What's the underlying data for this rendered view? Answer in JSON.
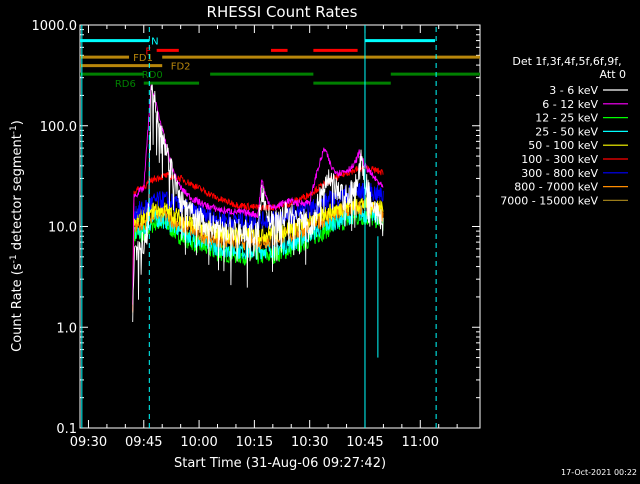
{
  "chart_data": {
    "type": "line",
    "title": "RHESSI Count Rates",
    "xlabel": "Start Time (31-Aug-06 09:27:42)",
    "ylabel_main": "Count Rate (s",
    "ylabel_sup1": "-1",
    "ylabel_mid": " detector segment",
    "ylabel_sup2": "-1",
    "ylabel_end": ")",
    "y_scale": "log",
    "ylim": [
      0.1,
      1000
    ],
    "x_ticks": [
      "09:30",
      "09:45",
      "10:00",
      "10:15",
      "10:30",
      "10:45",
      "11:00"
    ],
    "x_tick_minutes": [
      30,
      45,
      60,
      75,
      90,
      105,
      120
    ],
    "xlim_minutes": [
      27.7,
      136.2
    ],
    "y_ticks": [
      "0.1",
      "1.0",
      "10.0",
      "100.0",
      "1000.0"
    ],
    "y_tick_values": [
      0.1,
      1,
      10,
      100,
      1000
    ],
    "grid": false,
    "legend_position": "right",
    "legend_header_line1": "Det 1f,3f,4f,5f,6f,9f,",
    "legend_header_line2": "Att 0",
    "timestamp": "17-Oct-2021 00:22",
    "series": [
      {
        "name": "3 - 6 keV",
        "color": "#ffffff",
        "mode": "spiky",
        "pts": [
          [
            42,
            0.9
          ],
          [
            42.3,
            4.5
          ],
          [
            44,
            6.5
          ],
          [
            46,
            8
          ],
          [
            47,
            240
          ],
          [
            49,
            120
          ],
          [
            51,
            60
          ],
          [
            53,
            30
          ],
          [
            55,
            18
          ],
          [
            58,
            13
          ],
          [
            62,
            10.5
          ],
          [
            66,
            9.5
          ],
          [
            70,
            9
          ],
          [
            74,
            8.5
          ],
          [
            76,
            8.3
          ],
          [
            77,
            25
          ],
          [
            78,
            15
          ],
          [
            80,
            10
          ],
          [
            84,
            14
          ],
          [
            86,
            12
          ],
          [
            89,
            11.5
          ],
          [
            91,
            10
          ],
          [
            93,
            22
          ],
          [
            95,
            28
          ],
          [
            97,
            24
          ],
          [
            99,
            20
          ],
          [
            101,
            22
          ],
          [
            103,
            28
          ],
          [
            104,
            45
          ],
          [
            105,
            28
          ],
          [
            106,
            22
          ],
          [
            108,
            14
          ],
          [
            110,
            10
          ]
        ]
      },
      {
        "name": "6 - 12 keV",
        "color": "#ff00ff",
        "mode": "normal",
        "pts": [
          [
            42,
            1.8
          ],
          [
            42.3,
            20
          ],
          [
            45,
            24
          ],
          [
            47,
            250
          ],
          [
            49,
            130
          ],
          [
            51,
            65
          ],
          [
            53,
            35
          ],
          [
            55,
            24
          ],
          [
            58,
            19
          ],
          [
            62,
            16
          ],
          [
            66,
            14.5
          ],
          [
            70,
            14
          ],
          [
            74,
            13.5
          ],
          [
            76,
            13
          ],
          [
            77,
            30
          ],
          [
            78,
            20
          ],
          [
            80,
            15
          ],
          [
            84,
            18
          ],
          [
            87,
            17
          ],
          [
            90,
            17.5
          ],
          [
            92,
            35
          ],
          [
            94,
            60
          ],
          [
            96,
            38
          ],
          [
            98,
            34
          ],
          [
            100,
            36
          ],
          [
            102,
            40
          ],
          [
            103.5,
            55
          ],
          [
            105,
            40
          ],
          [
            107,
            32
          ],
          [
            110,
            24
          ]
        ]
      },
      {
        "name": "12 - 25 keV",
        "color": "#00ff00",
        "mode": "noisy",
        "pts": [
          [
            42.3,
            8
          ],
          [
            45,
            8.5
          ],
          [
            48,
            11
          ],
          [
            51,
            10.5
          ],
          [
            55,
            8
          ],
          [
            60,
            6.5
          ],
          [
            65,
            5.5
          ],
          [
            70,
            5.2
          ],
          [
            75,
            5
          ],
          [
            80,
            5.2
          ],
          [
            85,
            6
          ],
          [
            90,
            7.5
          ],
          [
            95,
            9.5
          ],
          [
            100,
            11.5
          ],
          [
            104,
            12.5
          ],
          [
            107,
            12
          ],
          [
            110,
            11
          ]
        ]
      },
      {
        "name": "25 - 50 keV",
        "color": "#00ffff",
        "mode": "noisy",
        "pts": [
          [
            42.3,
            9
          ],
          [
            45,
            9.5
          ],
          [
            48,
            12
          ],
          [
            51,
            11.5
          ],
          [
            55,
            9
          ],
          [
            60,
            7.2
          ],
          [
            65,
            6.2
          ],
          [
            70,
            5.8
          ],
          [
            75,
            5.7
          ],
          [
            80,
            6
          ],
          [
            85,
            6.8
          ],
          [
            90,
            8.5
          ],
          [
            95,
            10.5
          ],
          [
            100,
            12.5
          ],
          [
            104,
            13.5
          ],
          [
            107,
            13
          ],
          [
            110,
            12
          ]
        ]
      },
      {
        "name": "50 - 100 keV",
        "color": "#ffff00",
        "mode": "noisy",
        "pts": [
          [
            42.3,
            12
          ],
          [
            45,
            12.5
          ],
          [
            48,
            15
          ],
          [
            51,
            14.5
          ],
          [
            55,
            12
          ],
          [
            60,
            10
          ],
          [
            65,
            8.8
          ],
          [
            70,
            8.3
          ],
          [
            75,
            8.2
          ],
          [
            80,
            8.6
          ],
          [
            85,
            9.6
          ],
          [
            90,
            11.5
          ],
          [
            95,
            14
          ],
          [
            100,
            16
          ],
          [
            104,
            17
          ],
          [
            107,
            16.5
          ],
          [
            110,
            15
          ]
        ]
      },
      {
        "name": "100 - 300 keV",
        "color": "#ff0000",
        "mode": "normal",
        "pts": [
          [
            42,
            1.5
          ],
          [
            42.3,
            22
          ],
          [
            45,
            25
          ],
          [
            48,
            30
          ],
          [
            51,
            32
          ],
          [
            55,
            30
          ],
          [
            60,
            24
          ],
          [
            65,
            19
          ],
          [
            70,
            16.5
          ],
          [
            75,
            15.5
          ],
          [
            80,
            15.5
          ],
          [
            85,
            17
          ],
          [
            90,
            21
          ],
          [
            95,
            28
          ],
          [
            100,
            34
          ],
          [
            104,
            38
          ],
          [
            107,
            37
          ],
          [
            110,
            34
          ]
        ]
      },
      {
        "name": "300 - 800 keV",
        "color": "#0000ff",
        "mode": "noisy",
        "pts": [
          [
            42.3,
            14
          ],
          [
            45,
            15
          ],
          [
            48,
            18
          ],
          [
            51,
            18.5
          ],
          [
            55,
            16
          ],
          [
            60,
            13.5
          ],
          [
            65,
            12
          ],
          [
            70,
            11.5
          ],
          [
            75,
            11.3
          ],
          [
            80,
            11.8
          ],
          [
            85,
            13
          ],
          [
            90,
            15
          ],
          [
            95,
            18
          ],
          [
            100,
            21
          ],
          [
            104,
            22.5
          ],
          [
            107,
            22
          ],
          [
            110,
            20
          ]
        ]
      },
      {
        "name": "800 - 7000 keV",
        "color": "#ff8c00",
        "mode": "noisy",
        "pts": [
          [
            42,
            1.7
          ],
          [
            42.3,
            10
          ],
          [
            45,
            11
          ],
          [
            48,
            13.5
          ],
          [
            51,
            13
          ],
          [
            55,
            10.5
          ],
          [
            60,
            8.6
          ],
          [
            65,
            7.6
          ],
          [
            70,
            7.2
          ],
          [
            75,
            7.1
          ],
          [
            80,
            7.5
          ],
          [
            85,
            8.4
          ],
          [
            90,
            10.2
          ],
          [
            95,
            12.5
          ],
          [
            100,
            14.5
          ],
          [
            104,
            15.5
          ],
          [
            107,
            15
          ],
          [
            110,
            13.5
          ]
        ]
      },
      {
        "name": "7000 - 15000 keV",
        "color": "#9b7c1a",
        "mode": "none",
        "pts": []
      }
    ],
    "state_bars": [
      {
        "label": "N",
        "color": "#00ffff",
        "label_at": 48,
        "y": 700,
        "segs": [
          [
            27.7,
            46.5
          ],
          [
            105,
            124
          ]
        ]
      },
      {
        "label": "F",
        "color": "#ff0000",
        "label_at": 46.2,
        "y": 560,
        "segs": [
          [
            48.5,
            54.5
          ],
          [
            79.5,
            84
          ],
          [
            91,
            103
          ]
        ]
      },
      {
        "label": "FD1",
        "color": "#b8860b",
        "label_at": 44.8,
        "y": 480,
        "segs": [
          [
            27.7,
            41
          ],
          [
            50,
            136.2
          ]
        ]
      },
      {
        "label": "FD2",
        "color": "#b8860b",
        "label_at": 55,
        "y": 395,
        "segs": [
          [
            27.7,
            50
          ]
        ]
      },
      {
        "label": "RD0",
        "color": "#008000",
        "label_at": 47.3,
        "y": 325,
        "segs": [
          [
            27.7,
            45
          ],
          [
            63,
            91
          ],
          [
            112,
            136.2
          ]
        ]
      },
      {
        "label": "RD6",
        "color": "#008000",
        "label_at": 40,
        "y": 265,
        "segs": [
          [
            45,
            60
          ],
          [
            91,
            112
          ]
        ]
      }
    ],
    "markers": [
      {
        "x": 28.2,
        "style": "solid",
        "y_from": 0.1,
        "y_to": 1000
      },
      {
        "x": 46.5,
        "style": "dashed",
        "y_from": 0.1,
        "y_to": 1000
      },
      {
        "x": 105,
        "style": "solid",
        "y_from": 0.1,
        "y_to": 1000
      },
      {
        "x": 108.5,
        "style": "solid",
        "y_from": 0.5,
        "y_to": 8
      },
      {
        "x": 124.3,
        "style": "dashed",
        "y_from": 0.1,
        "y_to": 1000
      }
    ]
  }
}
